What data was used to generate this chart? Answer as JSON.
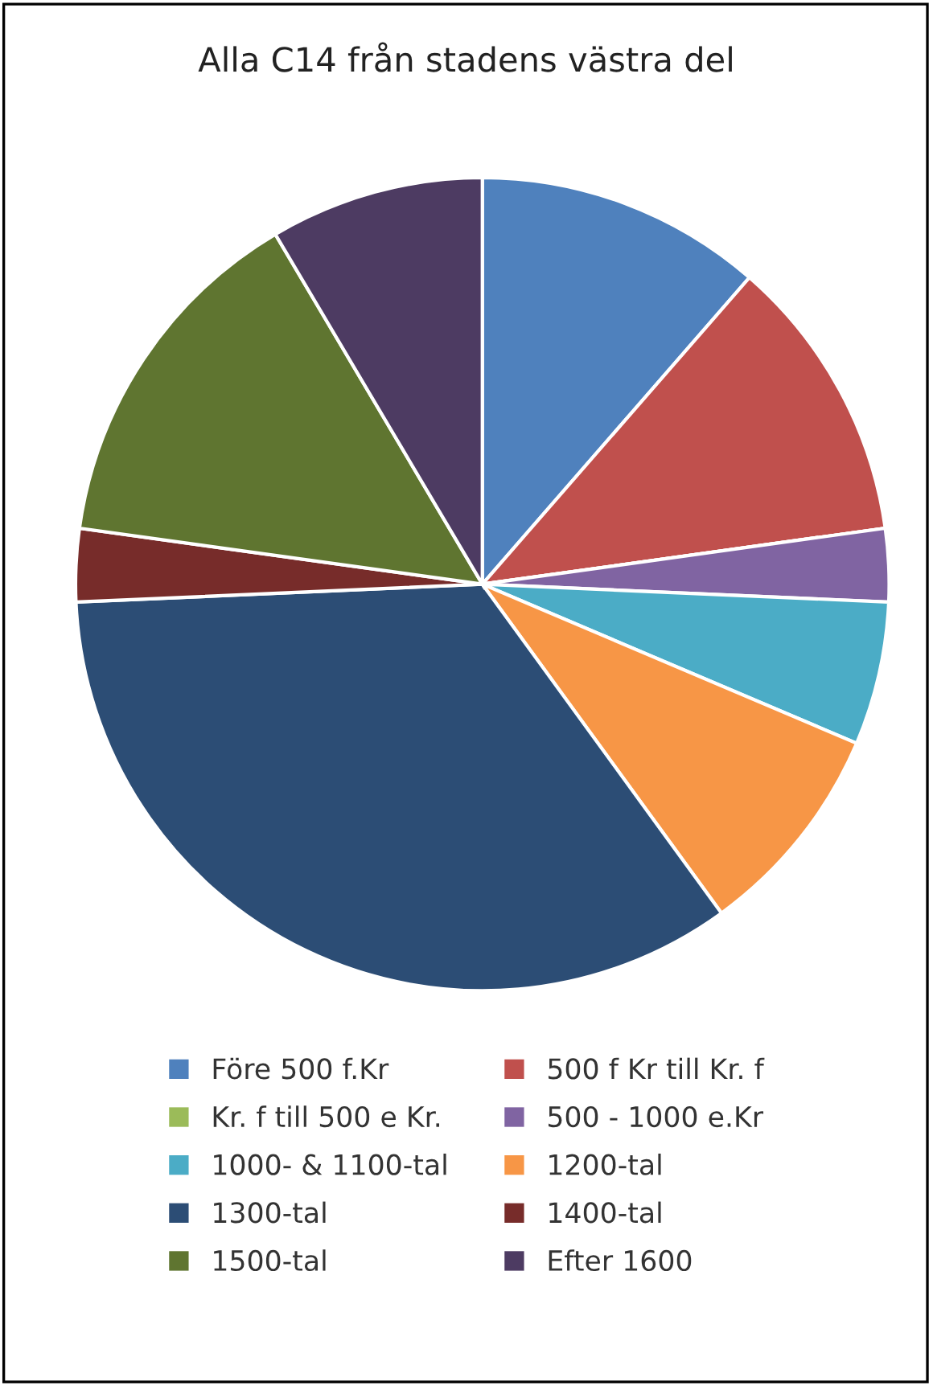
{
  "chart_data": {
    "type": "pie",
    "title": "Alla C14 från stadens västra del",
    "categories": [
      "Före 500 f.Kr",
      "500 f Kr till Kr. f",
      "Kr. f till 500 e Kr.",
      "500 - 1000 e.Kr",
      "1000- & 1100-tal",
      "1200-tal",
      "1300-tal",
      "1400-tal",
      "1500-tal",
      "Efter 1600"
    ],
    "values": [
      11.4,
      11.4,
      0,
      2.9,
      5.7,
      8.6,
      34.3,
      2.9,
      14.3,
      8.5
    ],
    "colors": [
      "#4f81bd",
      "#c0504d",
      "#9bbb59",
      "#8064a2",
      "#4bacc6",
      "#f79646",
      "#2c4d75",
      "#772c2a",
      "#5f7530",
      "#4d3b62"
    ],
    "legend": "bottom"
  }
}
